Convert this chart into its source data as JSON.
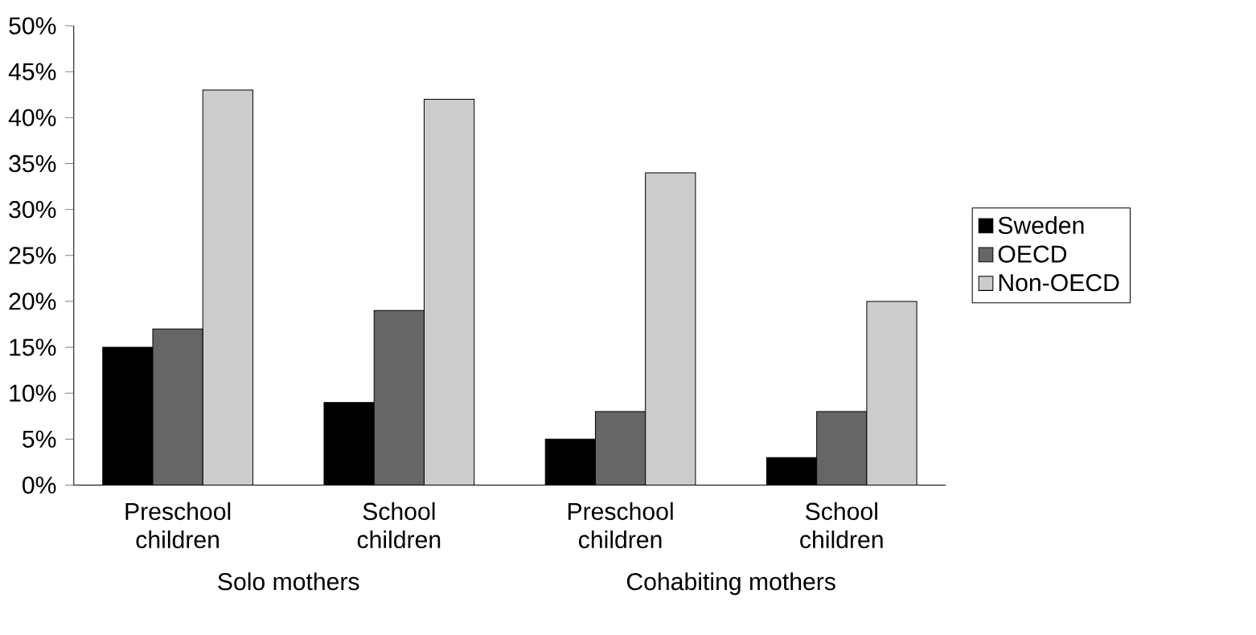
{
  "chart_data": {
    "type": "bar",
    "categories": [
      "Preschool children",
      "School children",
      "Preschool children",
      "School children"
    ],
    "series": [
      {
        "name": "Sweden",
        "color": "#000000",
        "values": [
          15,
          9,
          5,
          3
        ]
      },
      {
        "name": "OECD",
        "color": "#666666",
        "values": [
          17,
          19,
          8,
          8
        ]
      },
      {
        "name": "Non-OECD",
        "color": "#cccccc",
        "values": [
          43,
          42,
          34,
          20
        ]
      }
    ],
    "ylim": [
      0,
      50
    ],
    "yticks": [
      {
        "value": 0,
        "label": "0%"
      },
      {
        "value": 5,
        "label": "5%"
      },
      {
        "value": 10,
        "label": "10%"
      },
      {
        "value": 15,
        "label": "15%"
      },
      {
        "value": 20,
        "label": "20%"
      },
      {
        "value": 25,
        "label": "25%"
      },
      {
        "value": 30,
        "label": "30%"
      },
      {
        "value": 35,
        "label": "35%"
      },
      {
        "value": 40,
        "label": "40%"
      },
      {
        "value": 45,
        "label": "45%"
      },
      {
        "value": 50,
        "label": "50%"
      }
    ],
    "annotations": [
      "Solo mothers",
      "Cohabiting mothers"
    ],
    "grid": false,
    "legend": "right"
  }
}
